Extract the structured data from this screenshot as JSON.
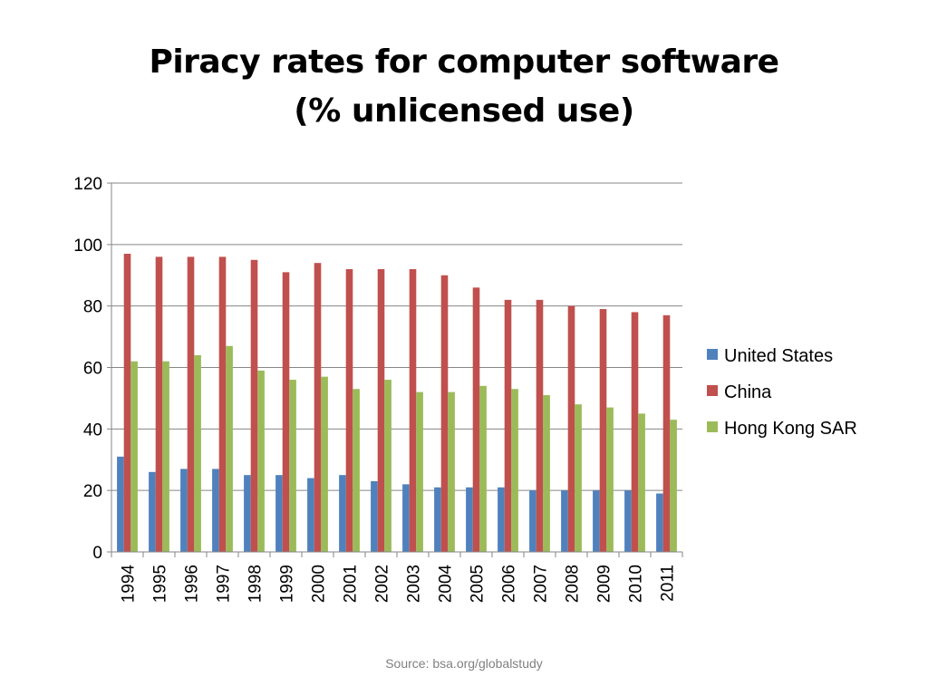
{
  "slide": {
    "title_line1": "Piracy rates for computer software",
    "title_line2": "(% unlicensed use)",
    "source": "Source: bsa.org/globalstudy"
  },
  "chart_data": {
    "type": "bar",
    "title": "Piracy rates for computer software (% unlicensed use)",
    "xlabel": "",
    "ylabel": "",
    "ylim": [
      0,
      120
    ],
    "yticks": [
      0,
      20,
      40,
      60,
      80,
      100,
      120
    ],
    "grid": true,
    "legend_position": "right",
    "categories": [
      "1994",
      "1995",
      "1996",
      "1997",
      "1998",
      "1999",
      "2000",
      "2001",
      "2002",
      "2003",
      "2004",
      "2005",
      "2006",
      "2007",
      "2008",
      "2009",
      "2010",
      "2011"
    ],
    "series": [
      {
        "name": "United States",
        "color": "#4F81BD",
        "values": [
          31,
          26,
          27,
          27,
          25,
          25,
          24,
          25,
          23,
          22,
          21,
          21,
          21,
          20,
          20,
          20,
          20,
          19
        ]
      },
      {
        "name": "China",
        "color": "#C0504D",
        "values": [
          97,
          96,
          96,
          96,
          95,
          91,
          94,
          92,
          92,
          92,
          90,
          86,
          82,
          82,
          80,
          79,
          78,
          77
        ]
      },
      {
        "name": "Hong Kong SAR",
        "color": "#9BBB59",
        "values": [
          62,
          62,
          64,
          67,
          59,
          56,
          57,
          53,
          56,
          52,
          52,
          54,
          53,
          51,
          48,
          47,
          45,
          43
        ]
      }
    ]
  }
}
